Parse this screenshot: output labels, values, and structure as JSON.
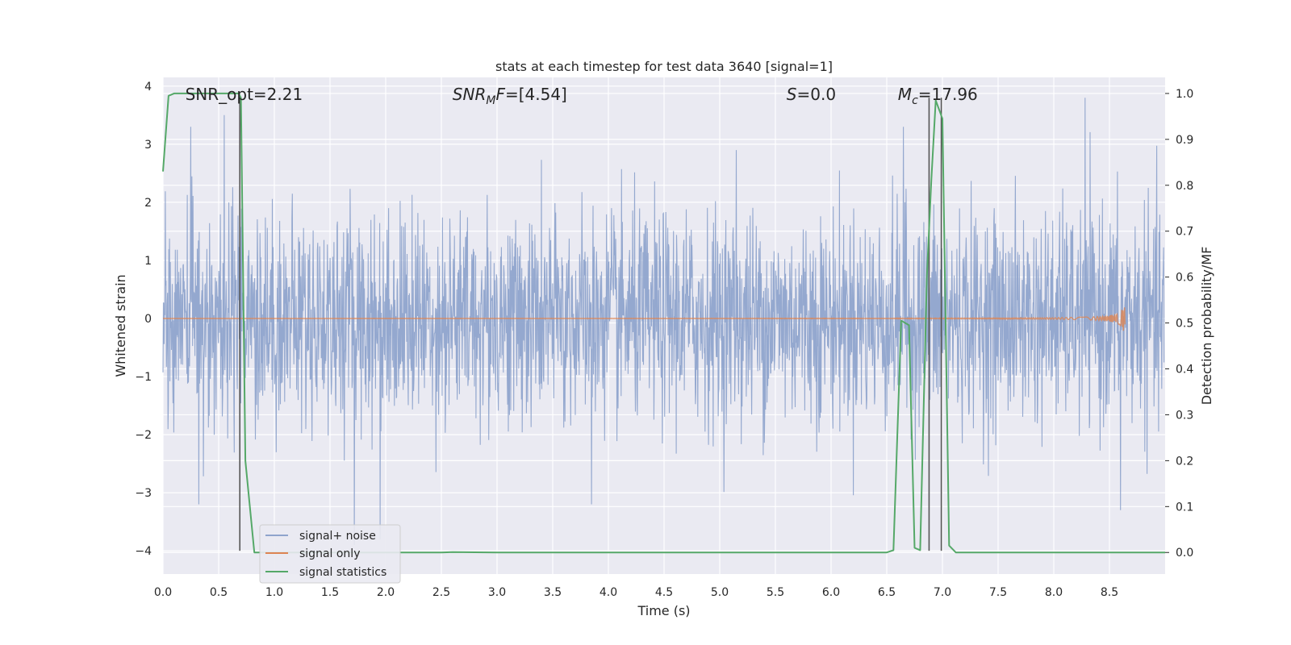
{
  "chart_data": {
    "type": "line",
    "title": "stats at each timestep for test data 3640 [signal=1]",
    "xlabel": "Time (s)",
    "ylabel": "Whitened strain",
    "y2label": "Detection probability/MF",
    "xlim": [
      0.0,
      9.0
    ],
    "ylim": [
      -4.4,
      4.15
    ],
    "y2lim": [
      -0.047,
      1.035
    ],
    "xticks": [
      0.0,
      0.5,
      1.0,
      1.5,
      2.0,
      2.5,
      3.0,
      3.5,
      4.0,
      4.5,
      5.0,
      5.5,
      6.0,
      6.5,
      7.0,
      7.5,
      8.0,
      8.5
    ],
    "xtick_labels": [
      "0.0",
      "0.5",
      "1.0",
      "1.5",
      "2.0",
      "2.5",
      "3.0",
      "3.5",
      "4.0",
      "4.5",
      "5.0",
      "5.5",
      "6.0",
      "6.5",
      "7.0",
      "7.5",
      "8.0",
      "8.5"
    ],
    "yticks": [
      4,
      3,
      2,
      1,
      0,
      -1,
      -2,
      -3,
      -4
    ],
    "ytick_labels": [
      "4",
      "3",
      "2",
      "1",
      "0",
      "−1",
      "−2",
      "−3",
      "−4"
    ],
    "y2ticks": [
      1.0,
      0.9,
      0.8,
      0.7,
      0.6,
      0.5,
      0.4,
      0.3,
      0.2,
      0.1,
      0.0
    ],
    "y2tick_labels": [
      "1.0",
      "0.9",
      "0.8",
      "0.7",
      "0.6",
      "0.5",
      "0.4",
      "0.3",
      "0.2",
      "0.1",
      "0.0"
    ],
    "grid": true,
    "legend_position": "lower-left",
    "annotations": [
      {
        "prefix": "SNR_opt",
        "sub": "",
        "suffix": "=2.21",
        "italic": false,
        "x": 0.2
      },
      {
        "prefix": "SNR",
        "sub": "M",
        "suffix": "F=[4.54]",
        "italic": true,
        "x": 2.6
      },
      {
        "prefix": "S",
        "sub": "",
        "suffix": "=0.0",
        "italic": true,
        "x": 5.6
      },
      {
        "prefix": "M",
        "sub": "c",
        "suffix": "=17.96",
        "italic": true,
        "x": 6.6
      }
    ],
    "vlines": [
      {
        "x": 0.69,
        "y": [
          -4.0,
          3.8
        ]
      },
      {
        "x": 6.88,
        "y": [
          -4.0,
          3.8
        ]
      },
      {
        "x": 6.99,
        "y": [
          -4.0,
          3.8
        ]
      }
    ],
    "series": [
      {
        "name": "signal+ noise",
        "color": "#8fa4cc",
        "kind": "noise",
        "x_range": [
          0.0,
          8.99
        ],
        "sigma": 0.9,
        "peaks": [
          [
            0.25,
            3.3
          ],
          [
            0.55,
            3.5
          ],
          [
            0.32,
            -3.2
          ],
          [
            1.72,
            -3.9
          ],
          [
            1.95,
            -3.8
          ],
          [
            3.85,
            -3.2
          ],
          [
            8.28,
            3.8
          ],
          [
            8.6,
            -3.3
          ],
          [
            5.15,
            2.9
          ],
          [
            6.65,
            3.3
          ]
        ]
      },
      {
        "name": "signal only",
        "color": "#dd8452",
        "kind": "chirp",
        "x_range": [
          0.0,
          8.64
        ],
        "peak_amplitude": 0.35
      },
      {
        "name": "signal statistics",
        "color": "#55a868",
        "axis": "right",
        "x": [
          0.0,
          0.05,
          0.1,
          0.2,
          0.3,
          0.4,
          0.5,
          0.6,
          0.68,
          0.7,
          0.74,
          0.82,
          1.0,
          2.0,
          2.5,
          2.6,
          3.0,
          4.0,
          5.0,
          6.0,
          6.5,
          6.56,
          6.63,
          6.7,
          6.75,
          6.8,
          6.86,
          6.9,
          6.94,
          7.0,
          7.06,
          7.12,
          7.5,
          8.0,
          8.5,
          9.0
        ],
        "y": [
          0.83,
          0.995,
          1.0,
          1.0,
          1.0,
          1.0,
          1.0,
          1.0,
          1.0,
          0.99,
          0.2,
          0.0,
          0.0,
          0.0,
          0.0,
          0.001,
          0.0,
          0.0,
          0.0,
          0.0,
          0.0,
          0.005,
          0.505,
          0.495,
          0.01,
          0.005,
          0.6,
          0.81,
          0.985,
          0.945,
          0.015,
          0.0,
          0.0,
          0.0,
          0.0,
          0.0
        ]
      }
    ]
  }
}
